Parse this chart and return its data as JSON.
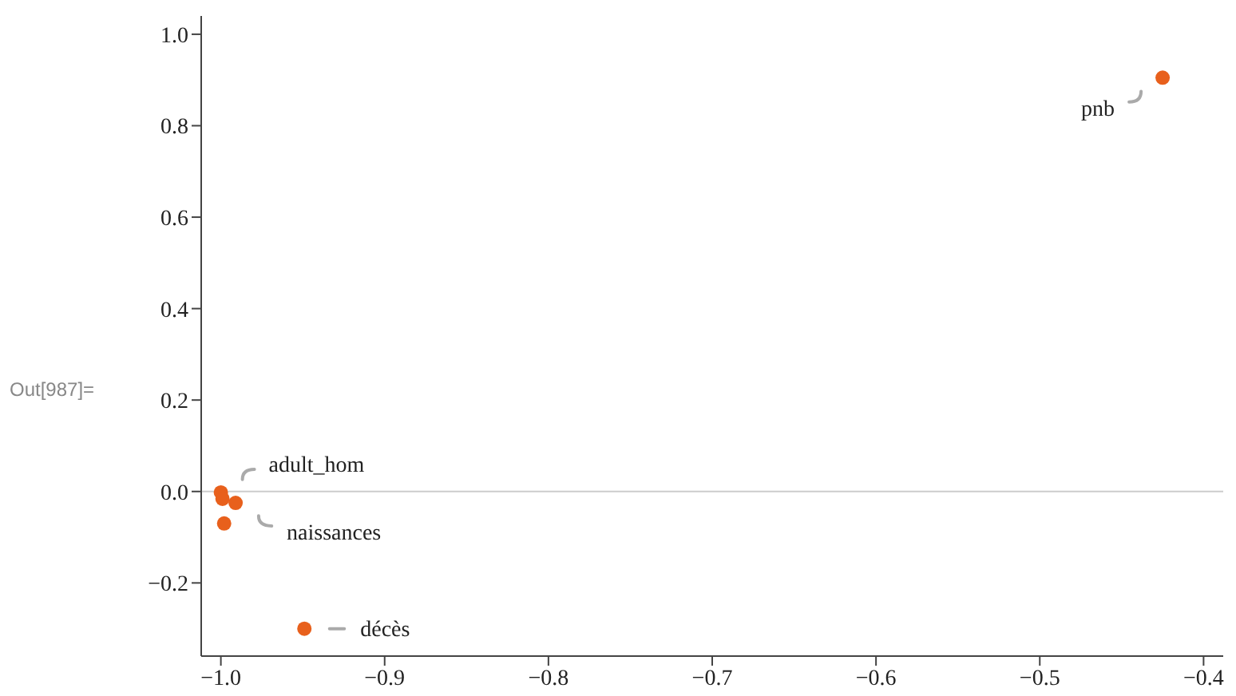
{
  "chart_data": {
    "type": "scatter",
    "x": [
      -1.0,
      -0.999,
      -0.991,
      -0.998,
      -0.949,
      -0.425
    ],
    "series": [
      {
        "color": "#e8601c",
        "values": [
          -0.002,
          -0.016,
          -0.025,
          -0.07,
          -0.3,
          0.905
        ]
      }
    ],
    "xlim": [
      -1.012,
      -0.388
    ],
    "ylim": [
      -0.36,
      1.04
    ],
    "xticks": [
      {
        "value": -1.0,
        "label": "−1.0"
      },
      {
        "value": -0.9,
        "label": "−0.9"
      },
      {
        "value": -0.8,
        "label": "−0.8"
      },
      {
        "value": -0.7,
        "label": "−0.7"
      },
      {
        "value": -0.6,
        "label": "−0.6"
      },
      {
        "value": -0.5,
        "label": "−0.5"
      },
      {
        "value": -0.4,
        "label": "−0.4"
      }
    ],
    "yticks": [
      {
        "value": -0.2,
        "label": "−0.2"
      },
      {
        "value": 0,
        "label": "0.0"
      },
      0.2,
      0.4,
      0.6,
      0.8,
      {
        "value": 1.0,
        "label": "1.0"
      }
    ],
    "ref_lines": [
      {
        "axis": "y",
        "value": 0,
        "color": "#cccccc"
      }
    ],
    "marker": "circle",
    "grid": false,
    "legend": false,
    "annotations": [
      "Out[987]=",
      {
        "text": "adult_hom",
        "x": -1.0,
        "y": -0.002
      },
      {
        "text": "naissances",
        "x": -0.991,
        "y": -0.025
      },
      {
        "text": "décès",
        "x": -0.949,
        "y": -0.3
      },
      {
        "text": "pnb",
        "x": -0.425,
        "y": 0.905
      }
    ]
  }
}
